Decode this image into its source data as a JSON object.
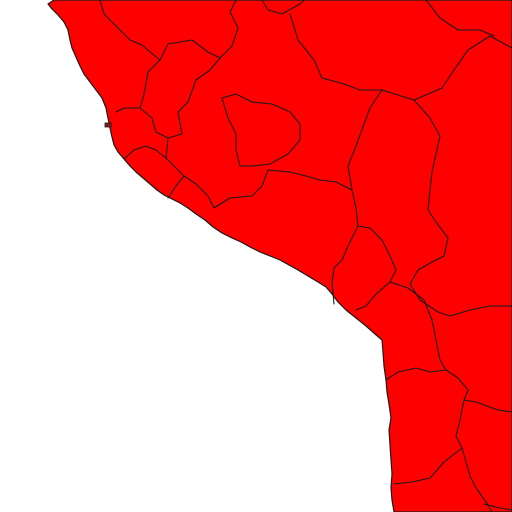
{
  "map": {
    "background_color": "#ffffff",
    "fill_color": "#ff0000",
    "border_color": "#1a1a1a",
    "islet_color": "#7a2020"
  }
}
